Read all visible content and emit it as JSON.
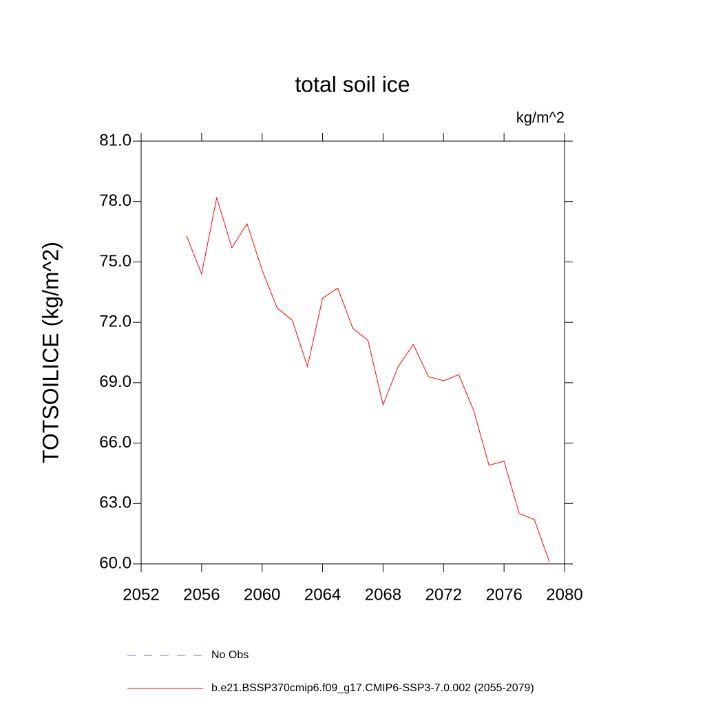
{
  "chart_data": {
    "type": "line",
    "title": "total soil ice",
    "units": "kg/m^2",
    "y_label": "TOTSOILICE  (kg/m^2)",
    "x": [
      2055,
      2056,
      2057,
      2058,
      2059,
      2060,
      2061,
      2062,
      2063,
      2064,
      2065,
      2066,
      2067,
      2068,
      2069,
      2070,
      2071,
      2072,
      2073,
      2074,
      2075,
      2076,
      2077,
      2078,
      2079
    ],
    "series": [
      {
        "name": "No Obs",
        "color": "#7b68c8",
        "dash": "dashed",
        "values": [
          null,
          null,
          null,
          null,
          null,
          null,
          null,
          null,
          null,
          null,
          null,
          null,
          null,
          null,
          null,
          null,
          null,
          null,
          null,
          null,
          null,
          null,
          null,
          null,
          null
        ]
      },
      {
        "name": "b.e21.BSSP370cmip6.f09_g17.CMIP6-SSP3-7.0.002 (2055-2079)",
        "color": "#ff0000",
        "dash": "solid",
        "values": [
          76.3,
          74.4,
          78.2,
          75.7,
          76.9,
          74.6,
          72.7,
          72.1,
          69.8,
          73.2,
          73.7,
          71.7,
          71.1,
          67.9,
          69.8,
          70.9,
          69.3,
          69.1,
          69.4,
          67.6,
          64.9,
          65.1,
          62.5,
          62.2,
          60.1
        ]
      }
    ],
    "xlim": [
      2052,
      2080
    ],
    "xticks": [
      2052,
      2056,
      2060,
      2064,
      2068,
      2072,
      2076,
      2080
    ],
    "ylim": [
      60,
      81
    ],
    "yticks": [
      {
        "value": 60,
        "label": "60.0"
      },
      {
        "value": 63,
        "label": "63.0"
      },
      {
        "value": 66,
        "label": "66.0"
      },
      {
        "value": 69,
        "label": "69.0"
      },
      {
        "value": 72,
        "label": "72.0"
      },
      {
        "value": 75,
        "label": "75.0"
      },
      {
        "value": 78,
        "label": "78.0"
      },
      {
        "value": 81,
        "label": "81.0"
      }
    ],
    "grid": false,
    "legend": "bottom"
  }
}
